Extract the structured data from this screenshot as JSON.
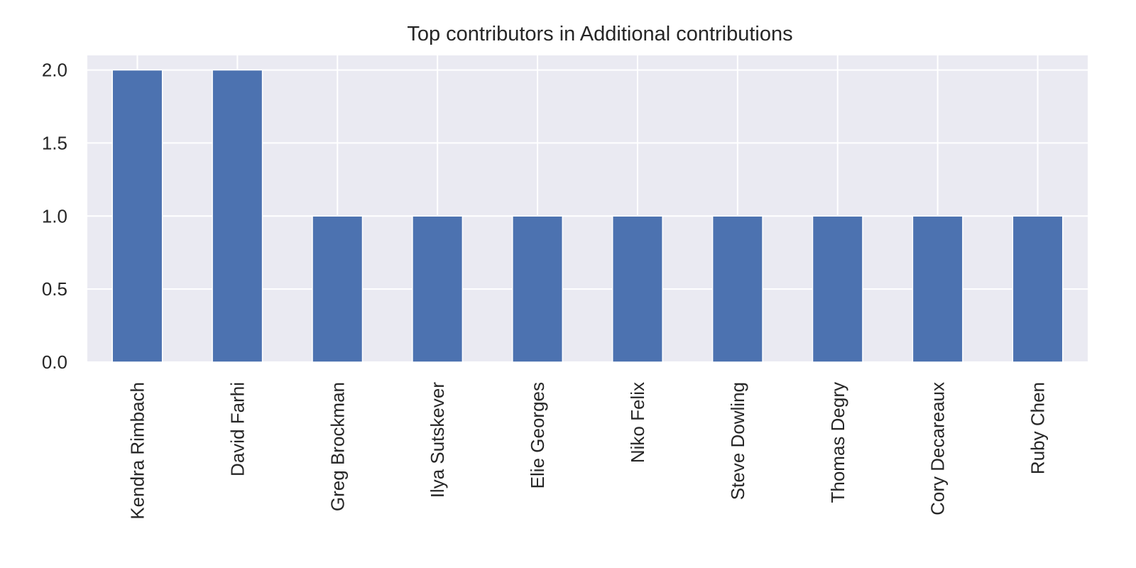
{
  "chart_data": {
    "type": "bar",
    "title": "Top contributors in Additional contributions",
    "xlabel": "",
    "ylabel": "",
    "categories": [
      "Kendra Rimbach",
      "David Farhi",
      "Greg Brockman",
      "Ilya Sutskever",
      "Elie Georges",
      "Niko Felix",
      "Steve Dowling",
      "Thomas Degry",
      "Cory Decareaux",
      "Ruby Chen"
    ],
    "values": [
      2,
      2,
      1,
      1,
      1,
      1,
      1,
      1,
      1,
      1
    ],
    "ylim": [
      0,
      2.1
    ],
    "yticks": [
      0.0,
      0.5,
      1.0,
      1.5,
      2.0
    ],
    "ytick_labels": [
      "0.0",
      "0.5",
      "1.0",
      "1.5",
      "2.0"
    ],
    "grid": true,
    "legend": "none",
    "colors": {
      "bar": "#4c72b0",
      "plot_background": "#eaeaf2",
      "grid": "#ffffff",
      "text": "#262626"
    }
  }
}
